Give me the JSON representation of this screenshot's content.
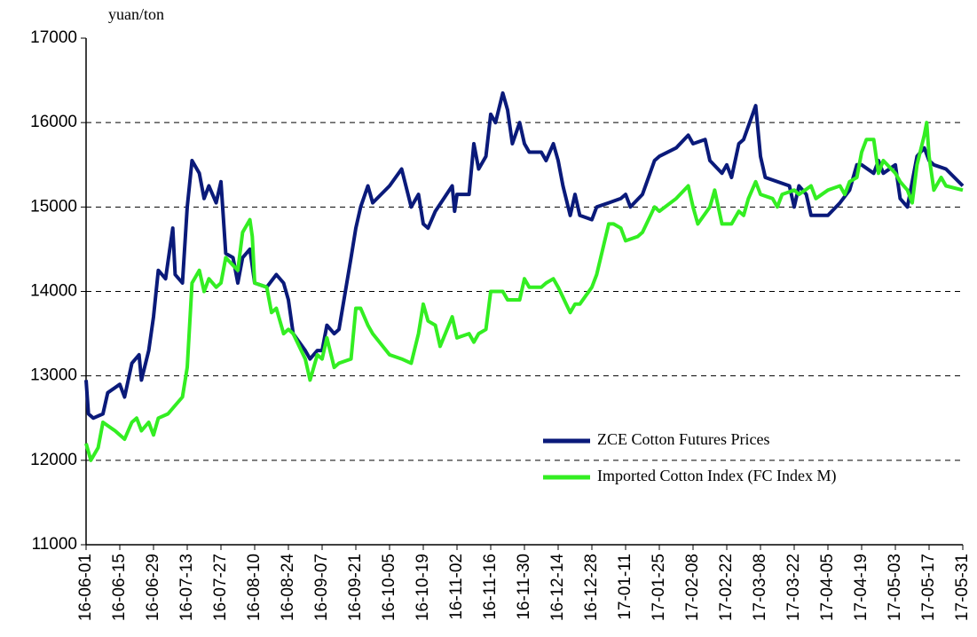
{
  "chart_data": {
    "type": "line",
    "y_unit": "yuan/ton",
    "xlim": [
      "16-06-01",
      "17-05-31"
    ],
    "xticks": [
      "16-06-01",
      "16-06-15",
      "16-06-29",
      "16-07-13",
      "16-07-27",
      "16-08-10",
      "16-08-24",
      "16-09-07",
      "16-09-21",
      "16-10-05",
      "16-10-19",
      "16-11-02",
      "16-11-16",
      "16-11-30",
      "16-12-14",
      "16-12-28",
      "17-01-11",
      "17-01-25",
      "17-02-08",
      "17-02-22",
      "17-03-08",
      "17-03-22",
      "17-04-05",
      "17-04-19",
      "17-05-03",
      "17-05-17",
      "17-05-31"
    ],
    "ylim": [
      11000,
      17000
    ],
    "yticks": [
      11000,
      12000,
      13000,
      14000,
      15000,
      16000,
      17000
    ],
    "grid": true,
    "legend": "lower right",
    "series": [
      {
        "name": "ZCE Cotton Futures Prices",
        "color": "#0a1a7a",
        "x": [
          "16-06-01",
          "16-06-02",
          "16-06-04",
          "16-06-08",
          "16-06-10",
          "16-06-15",
          "16-06-17",
          "16-06-20",
          "16-06-23",
          "16-06-24",
          "16-06-27",
          "16-06-29",
          "16-07-01",
          "16-07-04",
          "16-07-07",
          "16-07-08",
          "16-07-11",
          "16-07-13",
          "16-07-15",
          "16-07-18",
          "16-07-20",
          "16-07-22",
          "16-07-25",
          "16-07-27",
          "16-07-29",
          "16-08-01",
          "16-08-03",
          "16-08-05",
          "16-08-08",
          "16-08-10",
          "16-08-15",
          "16-08-19",
          "16-08-22",
          "16-08-24",
          "16-08-26",
          "16-08-31",
          "16-09-02",
          "16-09-05",
          "16-09-07",
          "16-09-09",
          "16-09-12",
          "16-09-14",
          "16-09-19",
          "16-09-21",
          "16-09-23",
          "16-09-26",
          "16-09-28",
          "16-10-05",
          "16-10-10",
          "16-10-14",
          "16-10-17",
          "16-10-19",
          "16-10-21",
          "16-10-24",
          "16-10-31",
          "16-11-01",
          "16-11-02",
          "16-11-07",
          "16-11-09",
          "16-11-11",
          "16-11-14",
          "16-11-16",
          "16-11-18",
          "16-11-21",
          "16-11-23",
          "16-11-25",
          "16-11-28",
          "16-11-30",
          "16-12-02",
          "16-12-07",
          "16-12-09",
          "16-12-12",
          "16-12-14",
          "16-12-16",
          "16-12-19",
          "16-12-21",
          "16-12-23",
          "16-12-28",
          "16-12-30",
          "17-01-04",
          "17-01-09",
          "17-01-11",
          "17-01-13",
          "17-01-18",
          "17-01-23",
          "17-01-25",
          "17-02-01",
          "17-02-06",
          "17-02-08",
          "17-02-13",
          "17-02-15",
          "17-02-20",
          "17-02-22",
          "17-02-24",
          "17-02-27",
          "17-03-01",
          "17-03-06",
          "17-03-08",
          "17-03-10",
          "17-03-15",
          "17-03-20",
          "17-03-22",
          "17-03-24",
          "17-03-27",
          "17-03-29",
          "17-04-05",
          "17-04-10",
          "17-04-14",
          "17-04-17",
          "17-04-19",
          "17-04-24",
          "17-04-26",
          "17-04-28",
          "17-05-03",
          "17-05-05",
          "17-05-08",
          "17-05-12",
          "17-05-15",
          "17-05-17",
          "17-05-19",
          "17-05-24",
          "17-05-31"
        ],
        "values": [
          12950,
          12550,
          12500,
          12550,
          12800,
          12900,
          12750,
          13150,
          13250,
          12950,
          13300,
          13700,
          14250,
          14150,
          14750,
          14200,
          14100,
          15000,
          15550,
          15400,
          15100,
          15250,
          15050,
          15300,
          14450,
          14400,
          14100,
          14400,
          14500,
          14100,
          14050,
          14200,
          14100,
          13900,
          13500,
          13300,
          13200,
          13300,
          13300,
          13600,
          13500,
          13550,
          14400,
          14750,
          15000,
          15250,
          15050,
          15250,
          15450,
          15000,
          15150,
          14800,
          14750,
          14950,
          15250,
          14950,
          15150,
          15150,
          15750,
          15450,
          15600,
          16100,
          16000,
          16350,
          16150,
          15750,
          16000,
          15750,
          15650,
          15650,
          15550,
          15750,
          15550,
          15250,
          14900,
          15150,
          14900,
          14850,
          15000,
          15050,
          15100,
          15150,
          15000,
          15150,
          15550,
          15600,
          15700,
          15850,
          15750,
          15800,
          15550,
          15400,
          15500,
          15350,
          15750,
          15800,
          16200,
          15600,
          15350,
          15300,
          15250,
          15000,
          15250,
          15150,
          14900,
          14900,
          15050,
          15200,
          15500,
          15500,
          15400,
          15550,
          15400,
          15500,
          15100,
          15000,
          15600,
          15700,
          15550,
          15500,
          15450,
          15250
        ]
      },
      {
        "name": "Imported Cotton Index (FC Index M)",
        "color": "#33ee22",
        "x": [
          "16-06-01",
          "16-06-03",
          "16-06-06",
          "16-06-08",
          "16-06-13",
          "16-06-15",
          "16-06-17",
          "16-06-20",
          "16-06-22",
          "16-06-24",
          "16-06-27",
          "16-06-29",
          "16-07-01",
          "16-07-05",
          "16-07-08",
          "16-07-11",
          "16-07-13",
          "16-07-15",
          "16-07-18",
          "16-07-20",
          "16-07-22",
          "16-07-25",
          "16-07-27",
          "16-07-29",
          "16-08-03",
          "16-08-05",
          "16-08-08",
          "16-08-09",
          "16-08-10",
          "16-08-15",
          "16-08-17",
          "16-08-19",
          "16-08-22",
          "16-08-24",
          "16-08-26",
          "16-08-31",
          "16-09-02",
          "16-09-05",
          "16-09-07",
          "16-09-09",
          "16-09-12",
          "16-09-14",
          "16-09-19",
          "16-09-21",
          "16-09-23",
          "16-09-26",
          "16-09-28",
          "16-10-05",
          "16-10-10",
          "16-10-14",
          "16-10-17",
          "16-10-19",
          "16-10-21",
          "16-10-24",
          "16-10-26",
          "16-10-31",
          "16-11-02",
          "16-11-07",
          "16-11-09",
          "16-11-11",
          "16-11-14",
          "16-11-16",
          "16-11-21",
          "16-11-23",
          "16-11-28",
          "16-11-30",
          "16-12-02",
          "16-12-07",
          "16-12-09",
          "16-12-12",
          "16-12-14",
          "16-12-19",
          "16-12-21",
          "16-12-23",
          "16-12-28",
          "16-12-30",
          "17-01-04",
          "17-01-06",
          "17-01-09",
          "17-01-11",
          "17-01-16",
          "17-01-18",
          "17-01-23",
          "17-01-25",
          "17-02-01",
          "17-02-06",
          "17-02-08",
          "17-02-10",
          "17-02-15",
          "17-02-17",
          "17-02-20",
          "17-02-24",
          "17-02-27",
          "17-03-01",
          "17-03-03",
          "17-03-06",
          "17-03-08",
          "17-03-13",
          "17-03-15",
          "17-03-17",
          "17-03-22",
          "17-03-24",
          "17-03-29",
          "17-03-31",
          "17-04-05",
          "17-04-10",
          "17-04-12",
          "17-04-14",
          "17-04-17",
          "17-04-19",
          "17-04-21",
          "17-04-24",
          "17-04-26",
          "17-04-28",
          "17-05-03",
          "17-05-05",
          "17-05-08",
          "17-05-10",
          "17-05-12",
          "17-05-15",
          "17-05-16",
          "17-05-17",
          "17-05-19",
          "17-05-22",
          "17-05-24",
          "17-05-31"
        ],
        "values": [
          12200,
          12000,
          12150,
          12450,
          12350,
          12300,
          12250,
          12450,
          12500,
          12350,
          12450,
          12300,
          12500,
          12550,
          12650,
          12750,
          13100,
          14100,
          14250,
          14000,
          14150,
          14050,
          14100,
          14400,
          14250,
          14700,
          14850,
          14650,
          14100,
          14050,
          13750,
          13800,
          13500,
          13550,
          13500,
          13200,
          12950,
          13250,
          13200,
          13450,
          13100,
          13150,
          13200,
          13800,
          13800,
          13600,
          13500,
          13250,
          13200,
          13150,
          13500,
          13850,
          13650,
          13600,
          13350,
          13700,
          13450,
          13500,
          13400,
          13500,
          13550,
          14000,
          14000,
          13900,
          13900,
          14150,
          14050,
          14050,
          14100,
          14150,
          14050,
          13750,
          13850,
          13850,
          14050,
          14200,
          14800,
          14800,
          14750,
          14600,
          14650,
          14700,
          15000,
          14950,
          15100,
          15250,
          15000,
          14800,
          15000,
          15200,
          14800,
          14800,
          14950,
          14900,
          15100,
          15300,
          15150,
          15100,
          15000,
          15150,
          15200,
          15150,
          15250,
          15100,
          15200,
          15250,
          15150,
          15300,
          15350,
          15650,
          15800,
          15800,
          15400,
          15550,
          15400,
          15300,
          15200,
          15050,
          15500,
          15850,
          16000,
          15600,
          15200,
          15350,
          15250,
          15200
        ]
      }
    ]
  }
}
